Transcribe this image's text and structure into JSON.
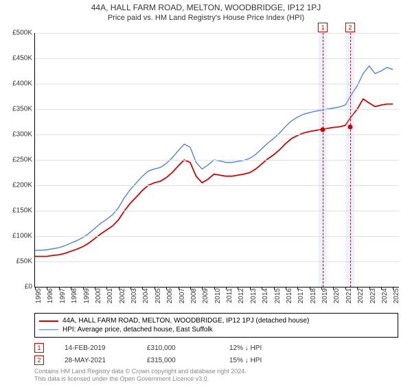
{
  "title": "44A, HALL FARM ROAD, MELTON, WOODBRIDGE, IP12 1PJ",
  "subtitle": "Price paid vs. HM Land Registry's House Price Index (HPI)",
  "chart": {
    "type": "line",
    "background_color": "#ffffff",
    "grid_color": "#e0e0e0",
    "axis_color": "#000000",
    "y": {
      "min": 0,
      "max": 500000,
      "step": 50000,
      "labels": [
        "£0",
        "£50K",
        "£100K",
        "£150K",
        "£200K",
        "£250K",
        "£300K",
        "£350K",
        "£400K",
        "£450K",
        "£500K"
      ]
    },
    "x": {
      "min": 1995,
      "max": 2025.5,
      "labels": [
        "1995",
        "1996",
        "1997",
        "1998",
        "1999",
        "2000",
        "2001",
        "2002",
        "2003",
        "2004",
        "2005",
        "2006",
        "2007",
        "2008",
        "2009",
        "2010",
        "2011",
        "2012",
        "2013",
        "2014",
        "2015",
        "2016",
        "2017",
        "2018",
        "2019",
        "2020",
        "2021",
        "2022",
        "2023",
        "2024",
        "2025"
      ]
    },
    "series": [
      {
        "name": "price_paid",
        "color": "#d40000",
        "width": 1.8,
        "points": [
          [
            1995,
            60000
          ],
          [
            1995.5,
            60000
          ],
          [
            1996,
            60000
          ],
          [
            1996.5,
            62000
          ],
          [
            1997,
            63000
          ],
          [
            1997.5,
            66000
          ],
          [
            1998,
            70000
          ],
          [
            1998.5,
            74000
          ],
          [
            1999,
            79000
          ],
          [
            1999.5,
            86000
          ],
          [
            2000,
            95000
          ],
          [
            2000.5,
            104000
          ],
          [
            2001,
            112000
          ],
          [
            2001.5,
            120000
          ],
          [
            2002,
            132000
          ],
          [
            2002.5,
            150000
          ],
          [
            2003,
            165000
          ],
          [
            2003.5,
            177000
          ],
          [
            2004,
            190000
          ],
          [
            2004.5,
            200000
          ],
          [
            2005,
            205000
          ],
          [
            2005.5,
            208000
          ],
          [
            2006,
            215000
          ],
          [
            2006.5,
            225000
          ],
          [
            2007,
            238000
          ],
          [
            2007.5,
            250000
          ],
          [
            2008,
            245000
          ],
          [
            2008.5,
            218000
          ],
          [
            2009,
            205000
          ],
          [
            2009.5,
            212000
          ],
          [
            2010,
            222000
          ],
          [
            2010.5,
            220000
          ],
          [
            2011,
            218000
          ],
          [
            2011.5,
            218000
          ],
          [
            2012,
            220000
          ],
          [
            2012.5,
            222000
          ],
          [
            2013,
            225000
          ],
          [
            2013.5,
            232000
          ],
          [
            2014,
            242000
          ],
          [
            2014.5,
            252000
          ],
          [
            2015,
            260000
          ],
          [
            2015.5,
            270000
          ],
          [
            2016,
            282000
          ],
          [
            2016.5,
            292000
          ],
          [
            2017,
            298000
          ],
          [
            2017.5,
            303000
          ],
          [
            2018,
            306000
          ],
          [
            2018.5,
            308000
          ],
          [
            2019,
            310000
          ],
          [
            2019.5,
            312000
          ],
          [
            2020,
            314000
          ],
          [
            2020.5,
            315000
          ],
          [
            2021,
            318000
          ],
          [
            2021.5,
            335000
          ],
          [
            2022,
            350000
          ],
          [
            2022.5,
            370000
          ],
          [
            2023,
            362000
          ],
          [
            2023.5,
            355000
          ],
          [
            2024,
            358000
          ],
          [
            2024.5,
            360000
          ],
          [
            2025,
            360000
          ]
        ]
      },
      {
        "name": "hpi",
        "color": "#5080e0",
        "width": 1.4,
        "points": [
          [
            1995,
            72000
          ],
          [
            1995.5,
            72000
          ],
          [
            1996,
            73000
          ],
          [
            1996.5,
            75000
          ],
          [
            1997,
            77000
          ],
          [
            1997.5,
            81000
          ],
          [
            1998,
            86000
          ],
          [
            1998.5,
            91000
          ],
          [
            1999,
            97000
          ],
          [
            1999.5,
            105000
          ],
          [
            2000,
            115000
          ],
          [
            2000.5,
            125000
          ],
          [
            2001,
            133000
          ],
          [
            2001.5,
            142000
          ],
          [
            2002,
            156000
          ],
          [
            2002.5,
            176000
          ],
          [
            2003,
            192000
          ],
          [
            2003.5,
            205000
          ],
          [
            2004,
            218000
          ],
          [
            2004.5,
            228000
          ],
          [
            2005,
            232000
          ],
          [
            2005.5,
            235000
          ],
          [
            2006,
            243000
          ],
          [
            2006.5,
            254000
          ],
          [
            2007,
            268000
          ],
          [
            2007.5,
            281000
          ],
          [
            2008,
            275000
          ],
          [
            2008.5,
            245000
          ],
          [
            2009,
            232000
          ],
          [
            2009.5,
            240000
          ],
          [
            2010,
            250000
          ],
          [
            2010.5,
            248000
          ],
          [
            2011,
            245000
          ],
          [
            2011.5,
            245000
          ],
          [
            2012,
            247000
          ],
          [
            2012.5,
            249000
          ],
          [
            2013,
            253000
          ],
          [
            2013.5,
            261000
          ],
          [
            2014,
            272000
          ],
          [
            2014.5,
            283000
          ],
          [
            2015,
            292000
          ],
          [
            2015.5,
            303000
          ],
          [
            2016,
            316000
          ],
          [
            2016.5,
            327000
          ],
          [
            2017,
            334000
          ],
          [
            2017.5,
            340000
          ],
          [
            2018,
            343000
          ],
          [
            2018.5,
            346000
          ],
          [
            2019,
            348000
          ],
          [
            2019.5,
            350000
          ],
          [
            2020,
            352000
          ],
          [
            2020.5,
            354000
          ],
          [
            2021,
            358000
          ],
          [
            2021.5,
            378000
          ],
          [
            2022,
            396000
          ],
          [
            2022.5,
            420000
          ],
          [
            2023,
            435000
          ],
          [
            2023.5,
            420000
          ],
          [
            2024,
            425000
          ],
          [
            2024.5,
            432000
          ],
          [
            2025,
            428000
          ]
        ]
      }
    ],
    "sales": [
      {
        "n": "1",
        "x": 2019.12,
        "price": 310000,
        "date": "14-FEB-2019",
        "diff": "12% ↓ HPI",
        "marker_color": "#d40000"
      },
      {
        "n": "2",
        "x": 2021.41,
        "price": 315000,
        "date": "28-MAY-2021",
        "diff": "15% ↓ HPI",
        "marker_color": "#d40000"
      }
    ],
    "sale_band_color": "rgba(180,200,240,0.3)",
    "sale_line_color": "#d40000"
  },
  "legend": {
    "items": [
      {
        "color": "#d40000",
        "width": 2,
        "label": "44A, HALL FARM ROAD, MELTON, WOODBRIDGE, IP12 1PJ (detached house)"
      },
      {
        "color": "#5080e0",
        "width": 1,
        "label": "HPI: Average price, detached house, East Suffolk"
      }
    ]
  },
  "footer": {
    "line1": "Contains HM Land Registry data © Crown copyright and database right 2024.",
    "line2": "This data is licensed under the Open Government Licence v3.0."
  }
}
